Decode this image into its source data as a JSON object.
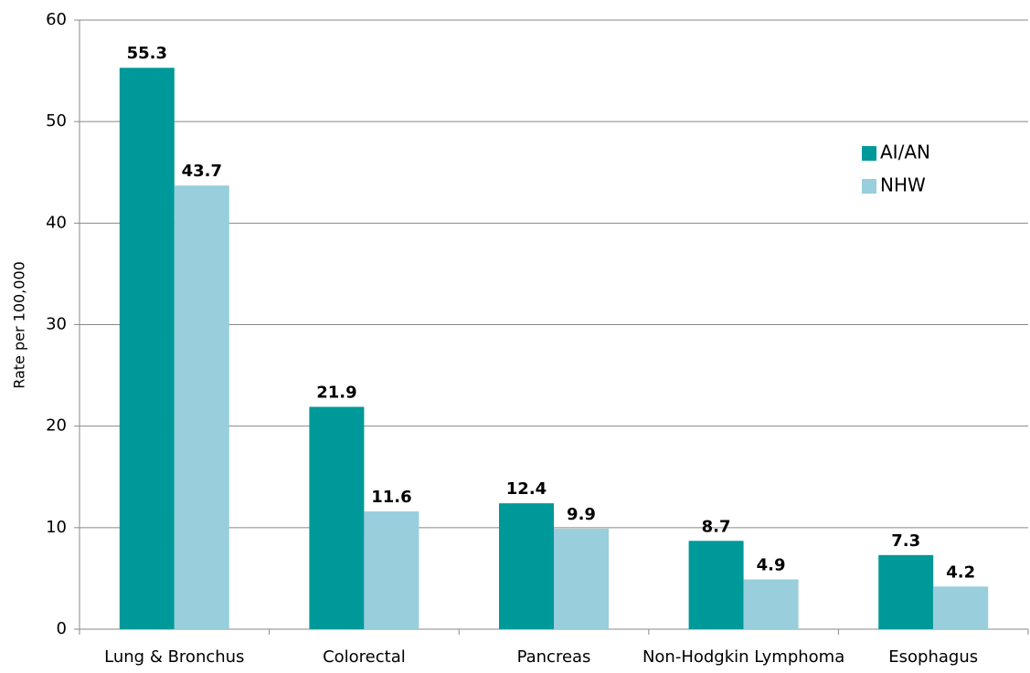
{
  "chart_data": {
    "type": "bar",
    "y_label": "Rate per 100,000",
    "categories": [
      "Lung & Bronchus",
      "Colorectal",
      "Pancreas",
      "Non-Hodgkin Lymphoma",
      "Esophagus"
    ],
    "series": [
      {
        "name": "AI/AN",
        "color": "#009999",
        "values": [
          55.3,
          21.9,
          12.4,
          8.7,
          7.3
        ]
      },
      {
        "name": "NHW",
        "color": "#99cedc",
        "values": [
          43.7,
          11.6,
          9.9,
          4.9,
          4.2
        ]
      }
    ],
    "ylim": [
      0,
      60
    ],
    "yticks": [
      0,
      10,
      20,
      30,
      40,
      50,
      60
    ],
    "grid": true,
    "legend": "right"
  }
}
